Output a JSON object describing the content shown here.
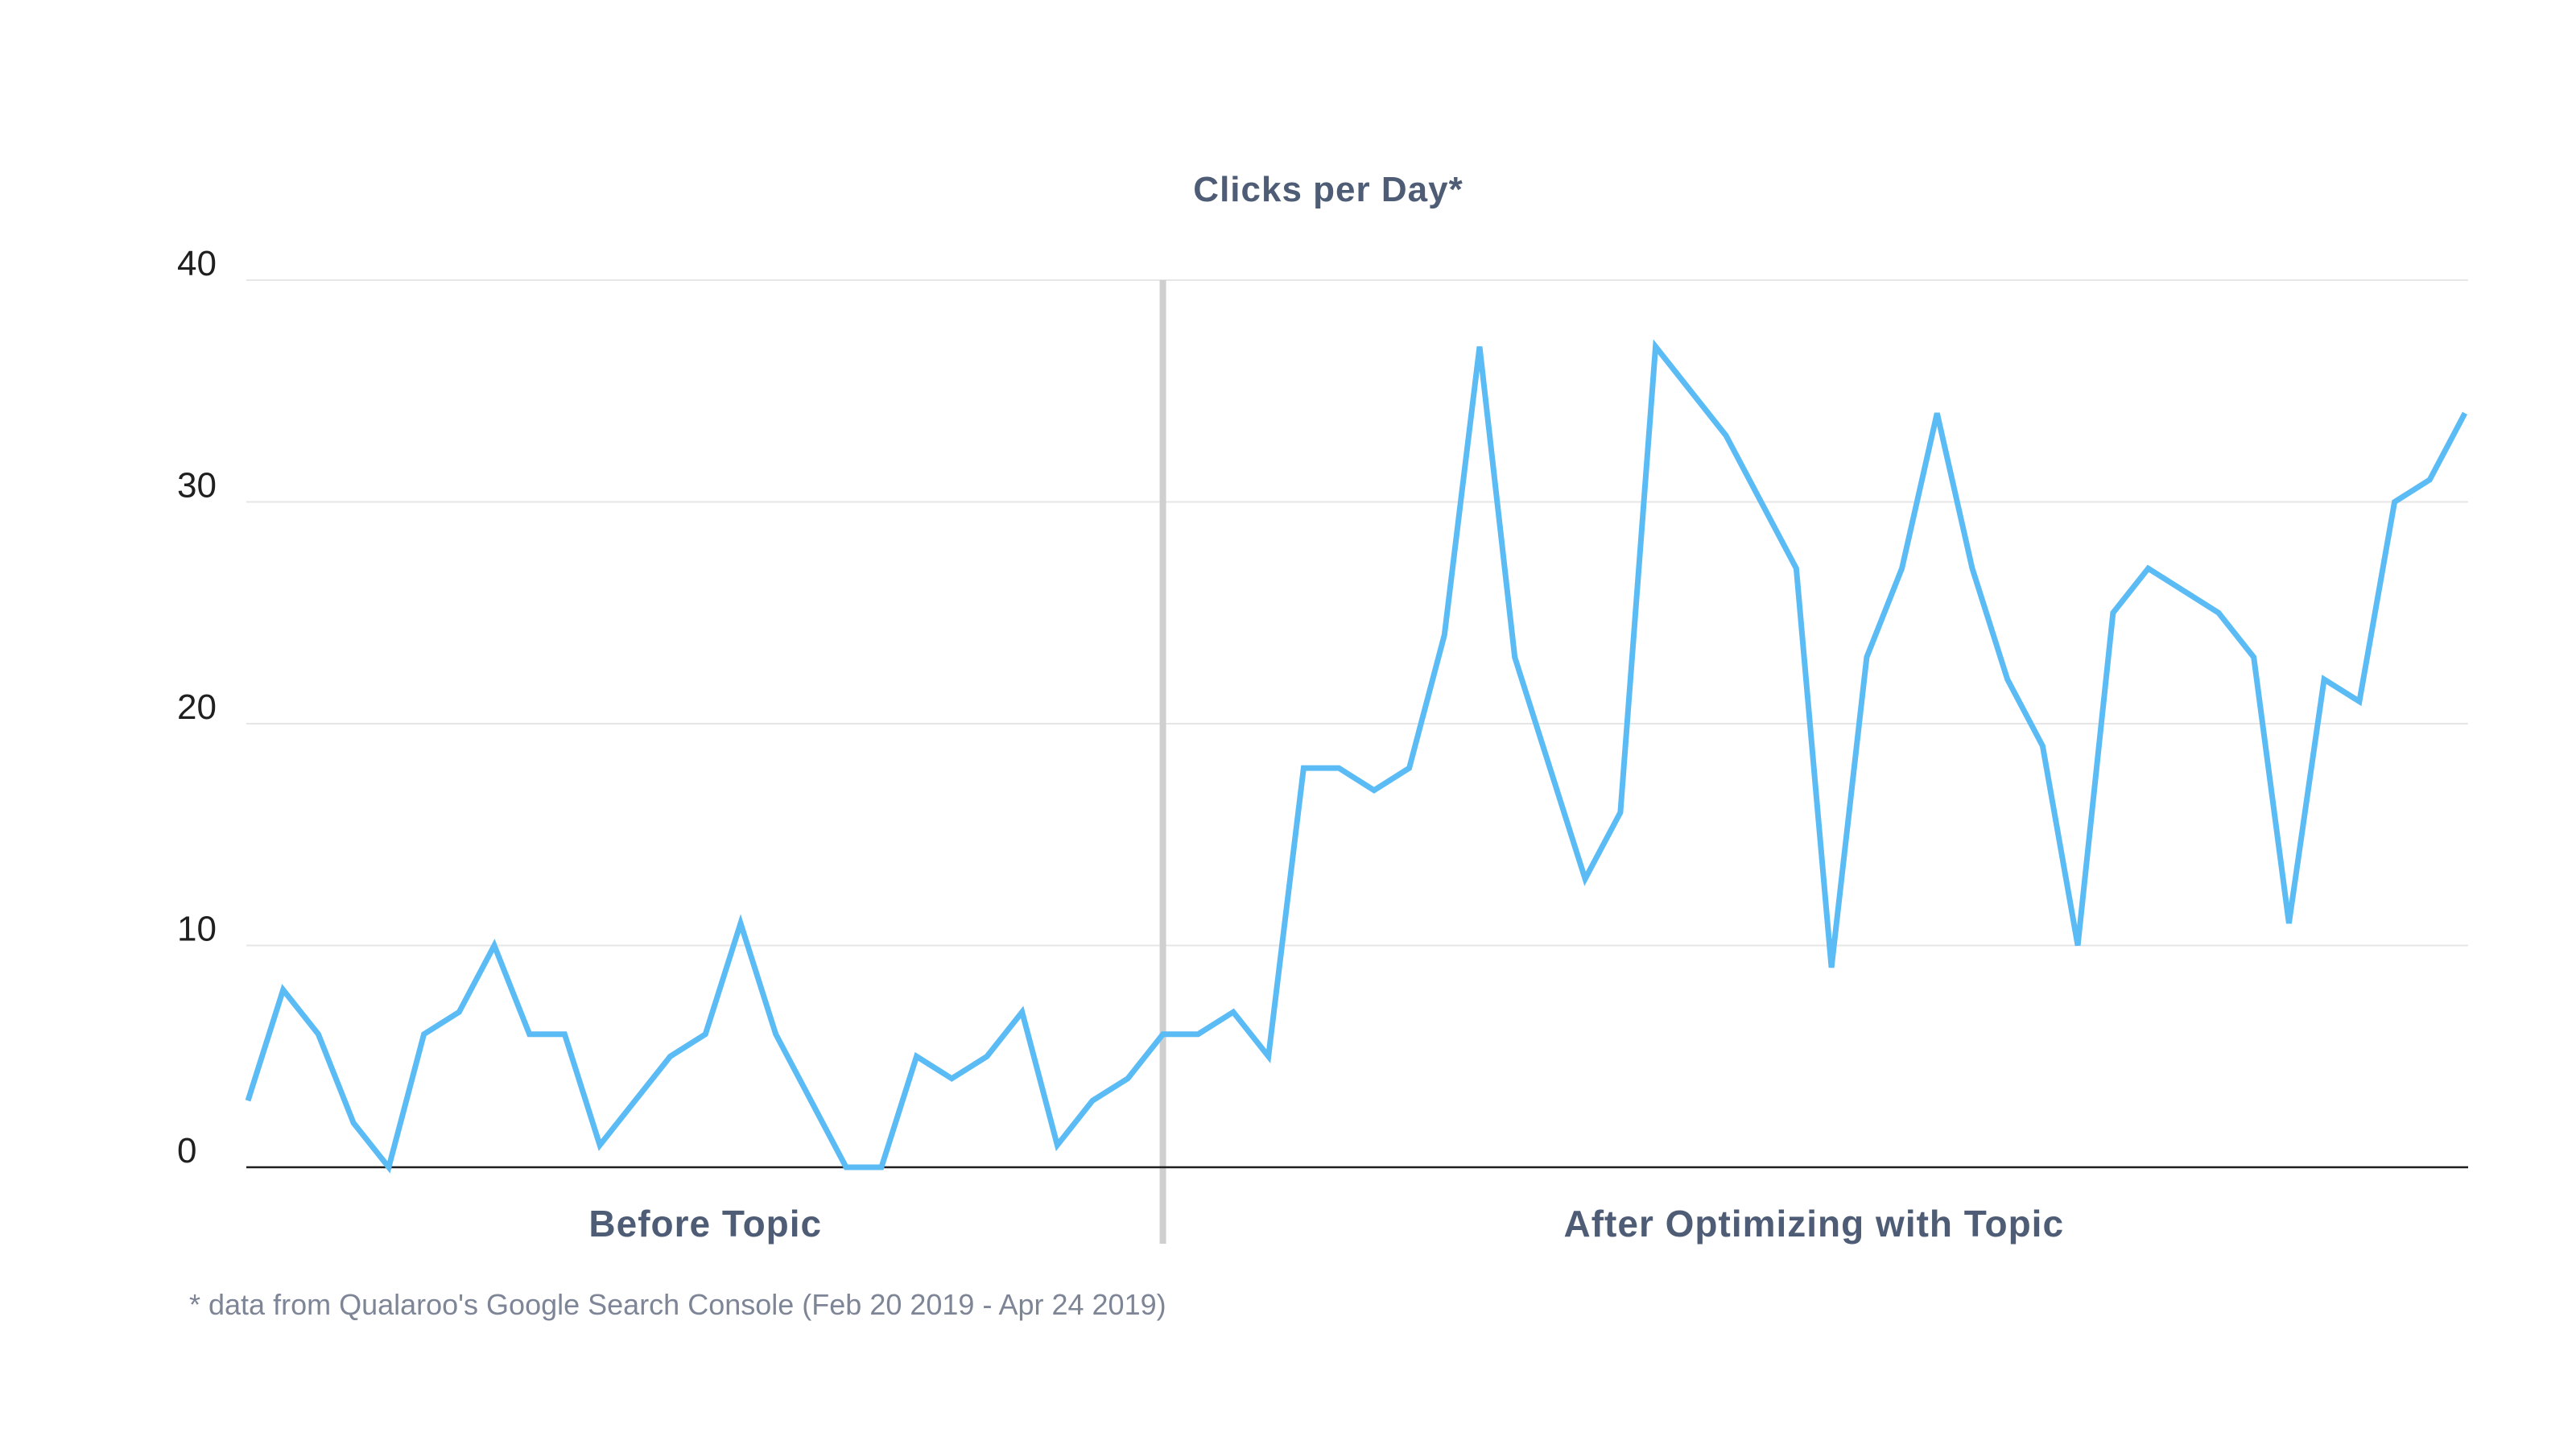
{
  "chart_data": {
    "type": "line",
    "title": "Clicks per Day*",
    "xlabel": "",
    "ylabel": "",
    "ylim": [
      0,
      40
    ],
    "yticks": [
      0,
      10,
      20,
      30,
      40
    ],
    "grid": true,
    "regions": [
      {
        "label": "Before Topic",
        "start_index": 0,
        "end_index": 26
      },
      {
        "label": "After Optimizing with Topic",
        "start_index": 26,
        "end_index": 63
      }
    ],
    "divider_after_index": 26,
    "series": [
      {
        "color": "#5bbcf5",
        "values": [
          3,
          8,
          6,
          2,
          0,
          6,
          7,
          10,
          6,
          6,
          1,
          3,
          5,
          6,
          11,
          6,
          3,
          0,
          0,
          5,
          4,
          5,
          7,
          1,
          3,
          4,
          6,
          6,
          7,
          5,
          18,
          18,
          17,
          18,
          24,
          37,
          23,
          18,
          13,
          16,
          37,
          35,
          33,
          30,
          27,
          9,
          23,
          27,
          34,
          27,
          22,
          19,
          10,
          25,
          27,
          26,
          25,
          23,
          11,
          22,
          21,
          30,
          31,
          34
        ]
      }
    ],
    "footnote": "* data from Qualaroo's Google Search Console (Feb 20 2019 - Apr 24 2019)"
  }
}
